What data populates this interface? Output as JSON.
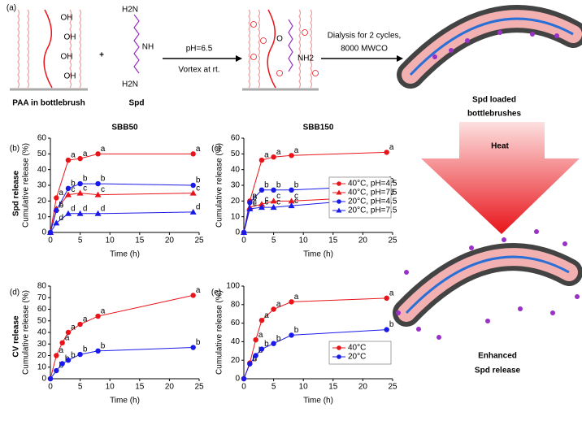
{
  "schematic": {
    "panel_label": "(a)",
    "paa_label": "PAA in bottlebrush",
    "plus": "+",
    "spd_label": "Spd",
    "structure_labels": [
      "OH",
      "O",
      "H2N",
      "NH",
      "NH2"
    ],
    "step1": [
      "pH=6.5",
      "Vortex at rt."
    ],
    "step2": [
      "Dialysis for 2 cycles,",
      "8000 MWCO"
    ],
    "loaded": [
      "Spd loaded",
      "bottlebrushes"
    ],
    "heat": "Heat",
    "enhanced": [
      "Enhanced",
      "Spd release"
    ]
  },
  "row_labels": [
    "Spd release",
    "CV release"
  ],
  "chart_data": [
    {
      "type": "line",
      "panel": "(b)",
      "title": "SBB50",
      "x_label": "Time (h)",
      "y_label": "Cumulative release (%)",
      "x": [
        0,
        1,
        3,
        5,
        8,
        24
      ],
      "xlim": [
        0,
        25
      ],
      "xticks": [
        0,
        5,
        10,
        15,
        20,
        25
      ],
      "ylim": [
        0,
        60
      ],
      "yticks": [
        0,
        10,
        20,
        30,
        40,
        50,
        60
      ],
      "series": [
        {
          "color": "#e8141a",
          "marker": "circle",
          "point_label": "a",
          "values": [
            0,
            22,
            46,
            47,
            50,
            50
          ]
        },
        {
          "color": "#e8141a",
          "marker": "triangle",
          "point_label": "c",
          "values": [
            0,
            15,
            24,
            25,
            24,
            25
          ]
        },
        {
          "color": "#1a1ae8",
          "marker": "circle",
          "point_label": "b",
          "values": [
            0,
            14,
            28,
            31,
            31,
            30
          ]
        },
        {
          "color": "#1a1ae8",
          "marker": "triangle",
          "point_label": "d",
          "values": [
            0,
            6,
            12,
            12,
            12,
            13
          ]
        }
      ]
    },
    {
      "type": "line",
      "panel": "(c)",
      "title": "SBB150",
      "x_label": "Time (h)",
      "y_label": "Cumulative release (%)",
      "x": [
        0,
        1,
        3,
        5,
        8,
        24
      ],
      "xlim": [
        0,
        25
      ],
      "xticks": [
        0,
        5,
        10,
        15,
        20,
        25
      ],
      "ylim": [
        0,
        60
      ],
      "yticks": [
        0,
        10,
        20,
        30,
        40,
        50,
        60
      ],
      "series": [
        {
          "name": "40°C, pH=4.5",
          "color": "#e8141a",
          "marker": "circle",
          "point_label": "a",
          "values": [
            0,
            20,
            46,
            48,
            49,
            51
          ]
        },
        {
          "name": "40°C, pH=7.5",
          "color": "#e8141a",
          "marker": "triangle",
          "point_label": "c",
          "values": [
            0,
            16,
            18,
            20,
            20,
            23
          ]
        },
        {
          "name": "20°C, pH=4.5",
          "color": "#1a1ae8",
          "marker": "circle",
          "point_label": "b",
          "values": [
            0,
            19,
            27,
            27,
            27,
            30
          ]
        },
        {
          "name": "20°C, pH=7.5",
          "color": "#1a1ae8",
          "marker": "triangle",
          "point_label": "c",
          "values": [
            0,
            15,
            16,
            16,
            17,
            22
          ]
        }
      ]
    },
    {
      "type": "line",
      "panel": "(d)",
      "x_label": "Time (h)",
      "y_label": "Cumulative release (%)",
      "x": [
        0,
        1,
        2,
        3,
        5,
        8,
        24
      ],
      "xlim": [
        0,
        25
      ],
      "xticks": [
        0,
        5,
        10,
        15,
        20,
        25
      ],
      "ylim": [
        0,
        80
      ],
      "yticks": [
        0,
        10,
        20,
        30,
        40,
        50,
        60,
        70,
        80
      ],
      "series": [
        {
          "color": "#e8141a",
          "marker": "circle",
          "point_label": "a",
          "values": [
            0,
            20,
            31,
            40,
            47,
            54,
            72
          ]
        },
        {
          "color": "#1a1ae8",
          "marker": "circle",
          "point_label": "b",
          "values": [
            0,
            7,
            13,
            16,
            21,
            24,
            27
          ]
        }
      ]
    },
    {
      "type": "line",
      "panel": "(e)",
      "x_label": "Time (h)",
      "y_label": "Cumulative release (%)",
      "x": [
        0,
        1,
        2,
        3,
        5,
        8,
        24
      ],
      "xlim": [
        0,
        25
      ],
      "xticks": [
        0,
        5,
        10,
        15,
        20,
        25
      ],
      "ylim": [
        0,
        100
      ],
      "yticks": [
        0,
        20,
        40,
        60,
        80,
        100
      ],
      "series": [
        {
          "name": "40°C",
          "color": "#e8141a",
          "marker": "circle",
          "point_label": "a",
          "values": [
            0,
            17,
            42,
            63,
            75,
            83,
            87
          ]
        },
        {
          "name": "20°C",
          "color": "#1a1ae8",
          "marker": "circle",
          "point_label": "b",
          "values": [
            0,
            16,
            25,
            32,
            38,
            47,
            53
          ]
        }
      ]
    }
  ]
}
